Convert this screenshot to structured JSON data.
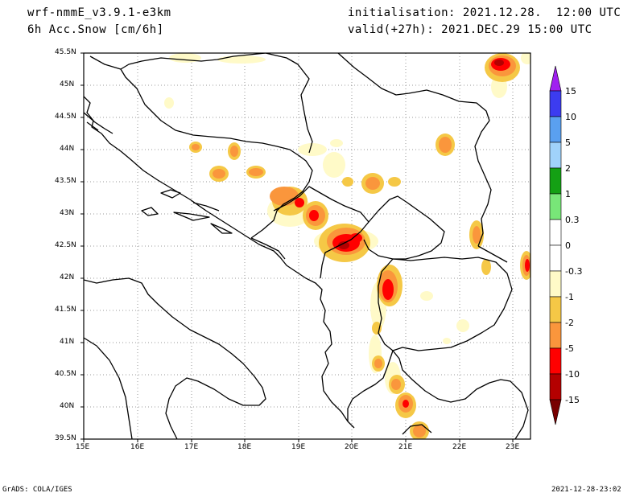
{
  "header": {
    "model": "wrf-nmmE_v3.9.1-e3km",
    "variable": "6h Acc.Snow [cm/6h]",
    "init": "initialisation: 2021.12.28.  12:00 UTC",
    "valid": "valid(+27h): 2021.DEC.29 15:00 UTC"
  },
  "footer": {
    "left": "GrADS: COLA/IGES",
    "right": "2021-12-28-23:02"
  },
  "map": {
    "lon_labels": [
      "15E",
      "16E",
      "17E",
      "18E",
      "19E",
      "20E",
      "21E",
      "22E",
      "23E"
    ],
    "lat_labels": [
      "45.5N",
      "45N",
      "44.5N",
      "44N",
      "43.5N",
      "43N",
      "42.5N",
      "42N",
      "41.5N",
      "41N",
      "40.5N",
      "40N",
      "39.5N"
    ]
  },
  "colorbar": {
    "labels": [
      "15",
      "10",
      "5",
      "2",
      "1",
      "0.3",
      "0",
      "-0.3",
      "-1",
      "-2",
      "-5",
      "-10",
      "-15"
    ],
    "colors": [
      "#a020f0",
      "#3c3cf0",
      "#5aa0f0",
      "#a0d2fa",
      "#14a014",
      "#78e678",
      "#ffffff",
      "#ffffff",
      "#fffac8",
      "#f5c846",
      "#fa963c",
      "#ff0000",
      "#b40000",
      "#780000"
    ]
  }
}
